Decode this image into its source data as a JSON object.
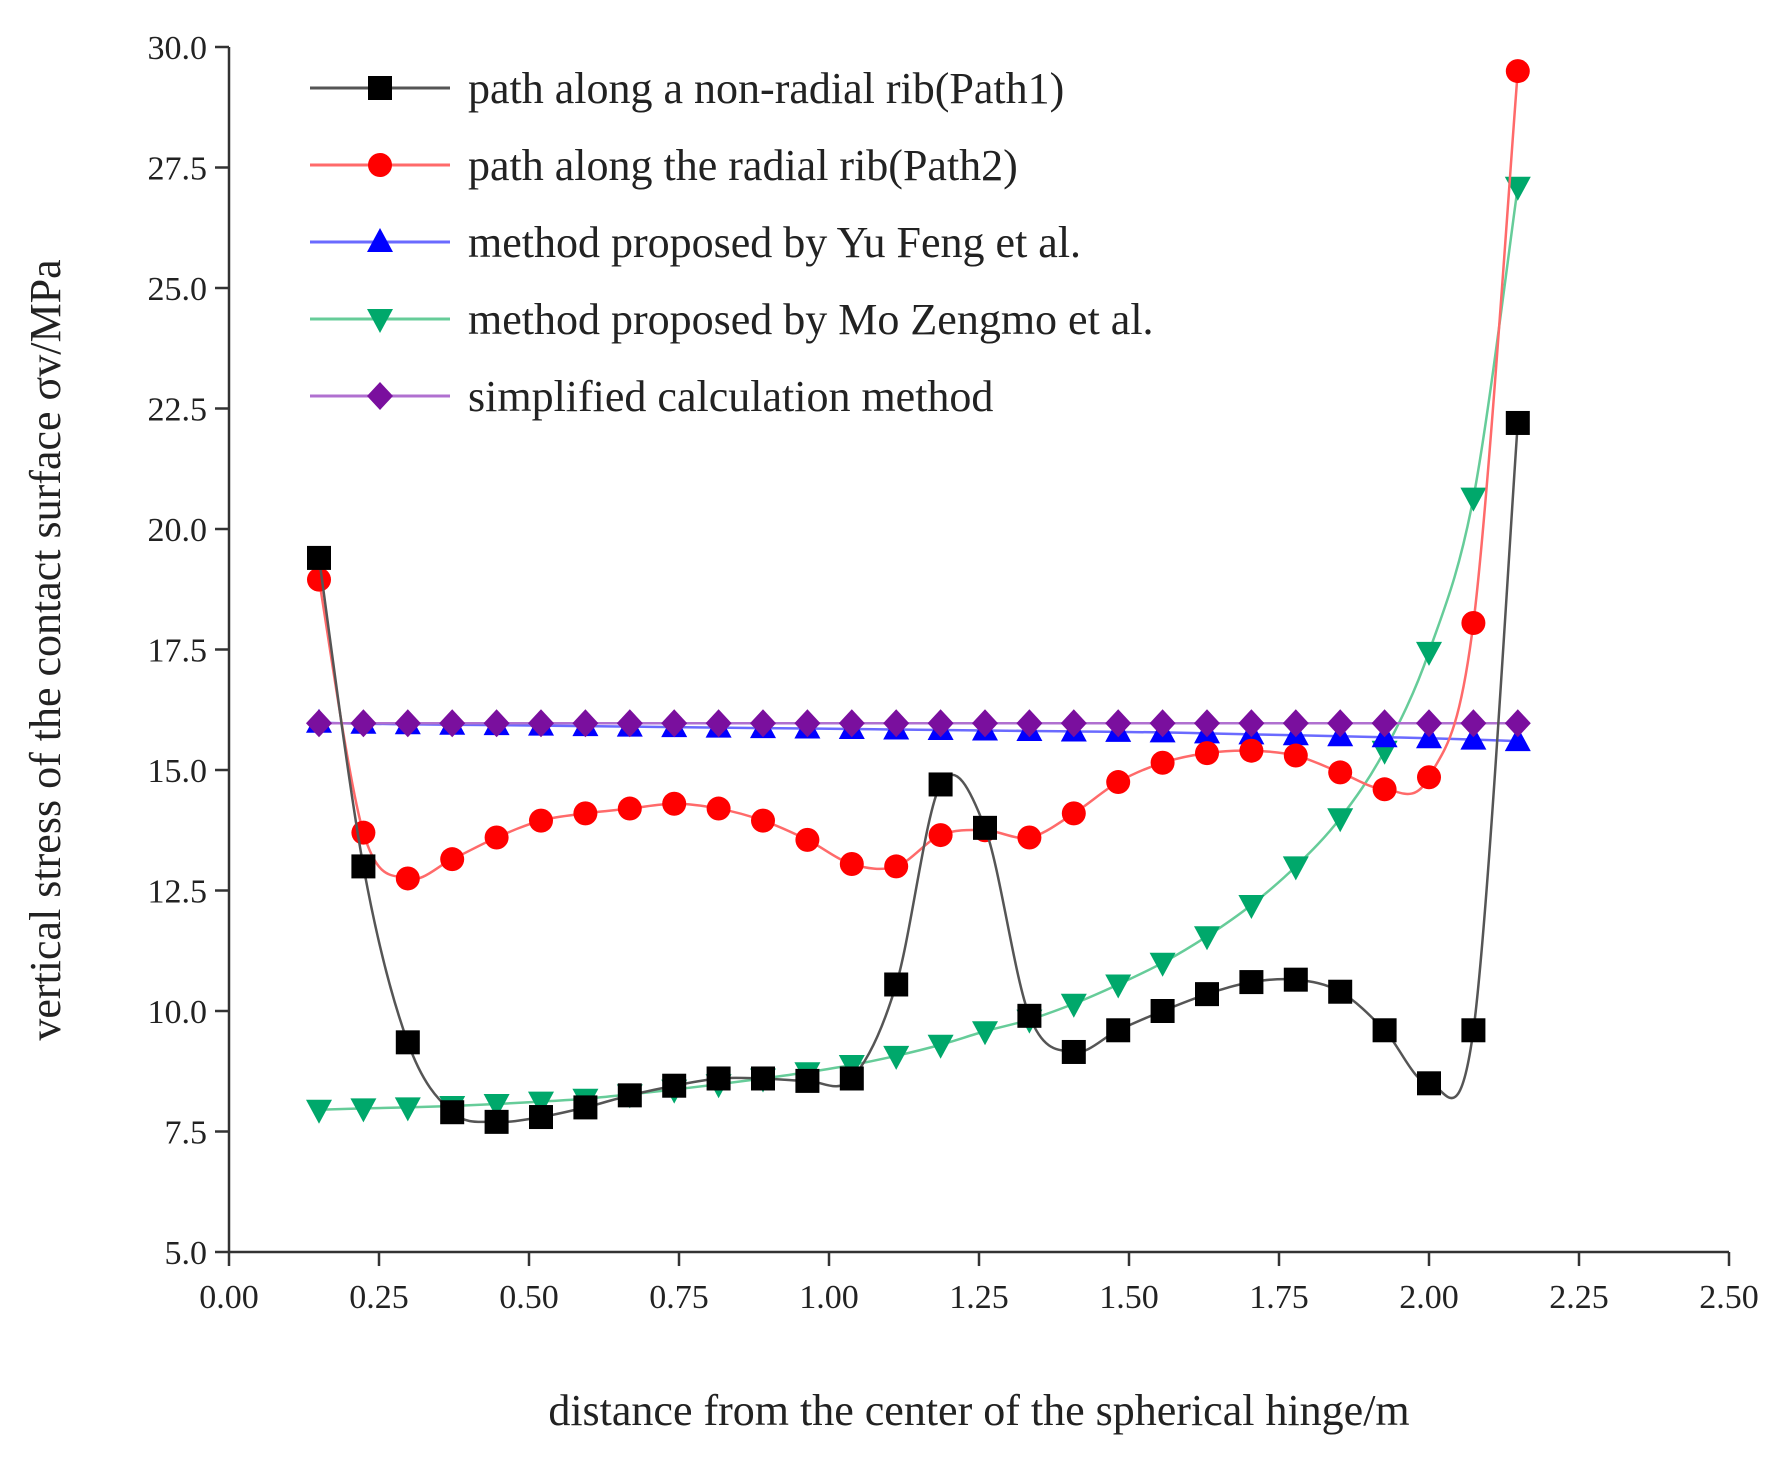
{
  "chart_data": {
    "type": "line",
    "xlabel": "distance from the center of the spherical hinge/m",
    "ylabel": "vertical stress of the contact surface σv/MPa",
    "xlim": [
      0.0,
      2.5
    ],
    "ylim": [
      5.0,
      30.0
    ],
    "x_ticks": [
      "0.00",
      "0.25",
      "0.50",
      "0.75",
      "1.00",
      "1.25",
      "1.50",
      "1.75",
      "2.00",
      "2.25",
      "2.50"
    ],
    "y_ticks": [
      "5.0",
      "7.5",
      "10.0",
      "12.5",
      "15.0",
      "17.5",
      "20.0",
      "22.5",
      "25.0",
      "27.5",
      "30.0"
    ],
    "grid": false,
    "legend_position": "top-left",
    "x": [
      0.15,
      0.224,
      0.298,
      0.372,
      0.446,
      0.52,
      0.594,
      0.668,
      0.742,
      0.816,
      0.89,
      0.964,
      1.038,
      1.112,
      1.186,
      1.26,
      1.334,
      1.408,
      1.482,
      1.556,
      1.63,
      1.704,
      1.778,
      1.852,
      1.926,
      2.0,
      2.074,
      2.148
    ],
    "series": [
      {
        "name": "path along a non-radial rib(Path1)",
        "color": "#000000",
        "line_color": "#555555",
        "marker": "square",
        "values": [
          19.4,
          13.0,
          9.35,
          7.9,
          7.7,
          7.8,
          8.0,
          8.25,
          8.45,
          8.6,
          8.6,
          8.55,
          8.6,
          10.55,
          14.7,
          13.8,
          9.9,
          9.15,
          9.6,
          10.0,
          10.35,
          10.6,
          10.65,
          10.4,
          9.6,
          8.5,
          9.6,
          22.2
        ]
      },
      {
        "name": "path along the radial rib(Path2)",
        "color": "#ff0000",
        "line_color": "#ff6a6a",
        "marker": "circle",
        "values": [
          18.95,
          13.7,
          12.75,
          13.15,
          13.6,
          13.95,
          14.1,
          14.2,
          14.3,
          14.2,
          13.95,
          13.55,
          13.05,
          13.0,
          13.65,
          13.75,
          13.6,
          14.1,
          14.75,
          15.15,
          15.35,
          15.4,
          15.3,
          14.95,
          14.6,
          14.85,
          18.05,
          29.5
        ]
      },
      {
        "name": "method proposed by Yu Feng et al.",
        "color": "#0000ff",
        "line_color": "#6a6aff",
        "marker": "triangle-up",
        "values": [
          15.98,
          15.96,
          15.95,
          15.94,
          15.93,
          15.92,
          15.91,
          15.9,
          15.89,
          15.88,
          15.87,
          15.86,
          15.85,
          15.84,
          15.83,
          15.82,
          15.81,
          15.8,
          15.79,
          15.78,
          15.76,
          15.74,
          15.72,
          15.7,
          15.68,
          15.66,
          15.63,
          15.6
        ]
      },
      {
        "name": "method proposed by Mo Zengmo et al.",
        "color": "#00a86b",
        "line_color": "#66cc99",
        "marker": "triangle-down",
        "values": [
          7.95,
          7.98,
          8.0,
          8.03,
          8.07,
          8.12,
          8.18,
          8.27,
          8.37,
          8.48,
          8.6,
          8.73,
          8.88,
          9.07,
          9.3,
          9.58,
          9.82,
          10.15,
          10.55,
          11.0,
          11.55,
          12.2,
          13.0,
          14.0,
          15.4,
          17.45,
          20.65,
          27.1
        ]
      },
      {
        "name": "simplified calculation method",
        "color": "#7a0f9e",
        "line_color": "#b070d0",
        "marker": "diamond",
        "values": [
          15.97,
          15.97,
          15.97,
          15.97,
          15.97,
          15.97,
          15.97,
          15.97,
          15.97,
          15.97,
          15.97,
          15.97,
          15.97,
          15.97,
          15.97,
          15.97,
          15.97,
          15.97,
          15.97,
          15.97,
          15.97,
          15.97,
          15.97,
          15.97,
          15.97,
          15.97,
          15.97,
          15.97
        ]
      }
    ]
  }
}
